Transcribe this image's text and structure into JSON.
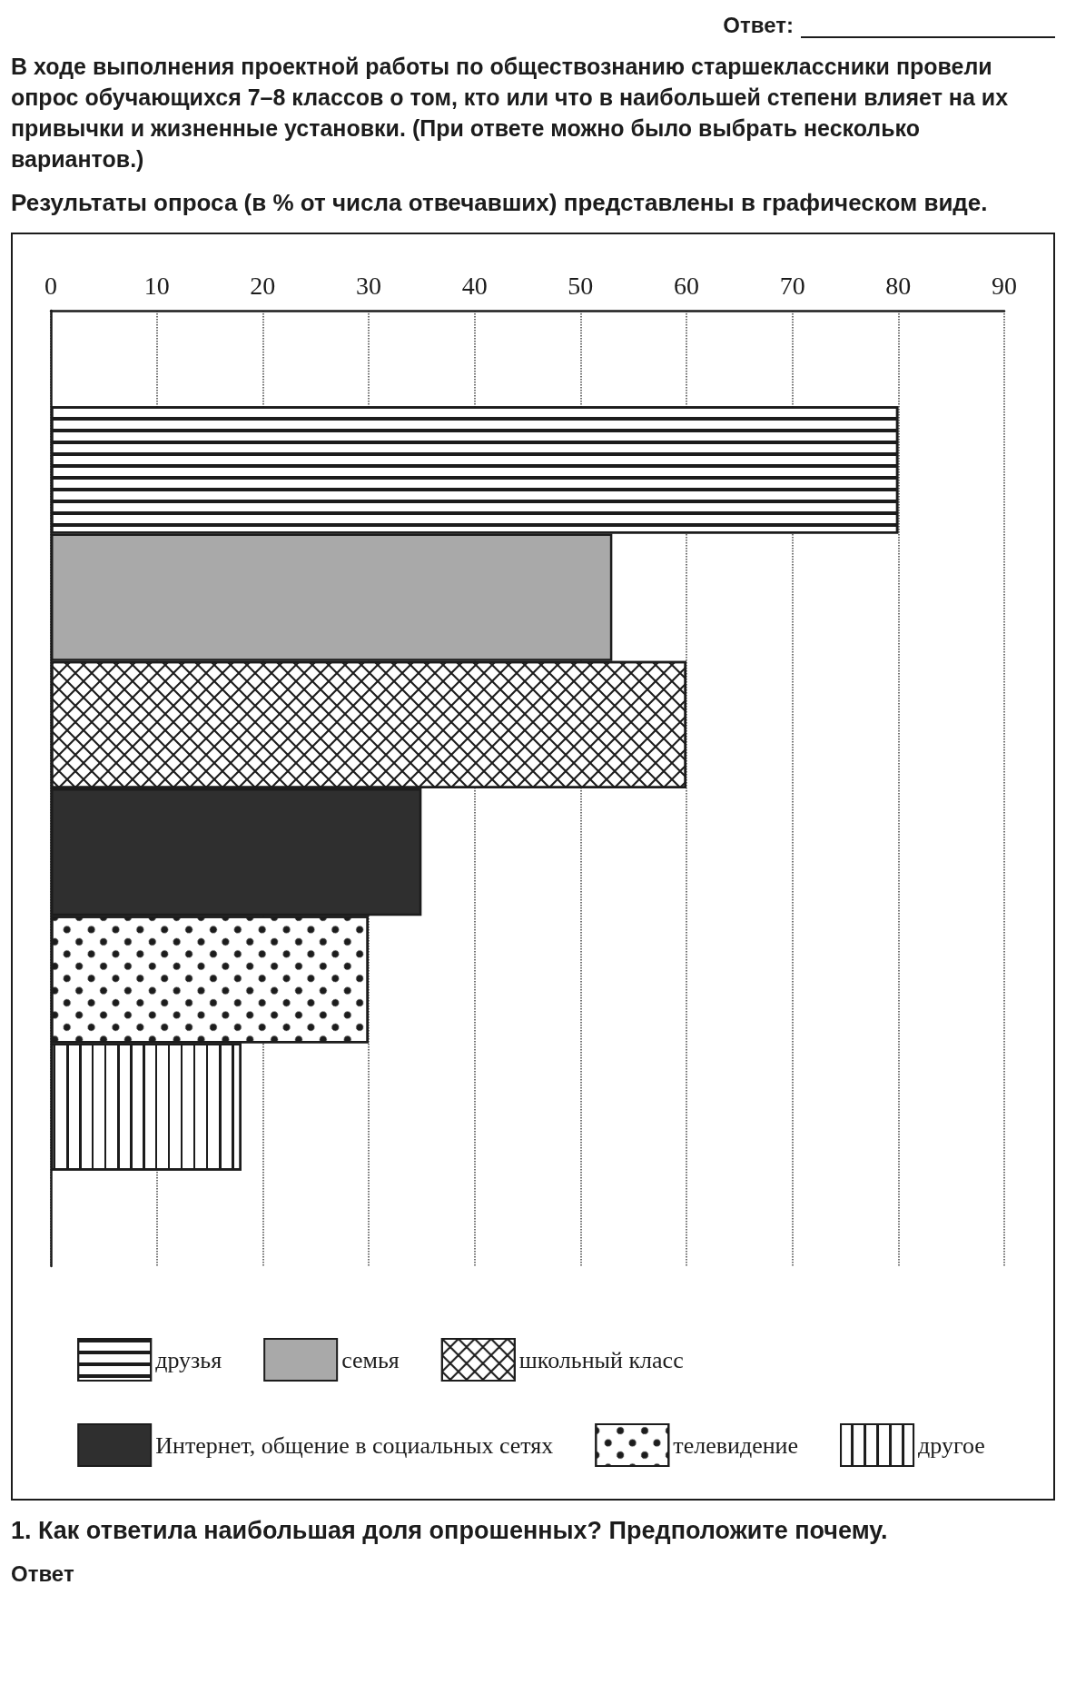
{
  "chart_data": {
    "type": "bar",
    "orientation": "horizontal",
    "title": "В ходе выполнения проектной работы по обществознанию старшеклассники провели опрос обучающихся 7–8 классов о том, кто или что в наибольшей степени влияет на их привычки и жизненные установки. (При ответе можно было выбрать несколько вариантов.)",
    "subtitle": "Результаты опроса (в % от числа отвечавших) представлены в графическом виде.",
    "categories": [
      null
    ],
    "series": [
      {
        "name": "друзья",
        "color": "#ffffff",
        "values": [
          80
        ]
      },
      {
        "name": "семья",
        "color": "#a9a9a9",
        "values": [
          53
        ]
      },
      {
        "name": "школьный класс",
        "color": "#ffffff",
        "values": [
          60
        ]
      },
      {
        "name": "Интернет, общение в социальных сетях",
        "color": "#2f2f2f",
        "values": [
          35
        ]
      },
      {
        "name": "телевидение",
        "color": "#ffffff",
        "values": [
          30
        ]
      },
      {
        "name": "другое",
        "color": "#ffffff",
        "values": [
          18
        ]
      }
    ],
    "xlim": [
      0,
      90
    ],
    "xticks": [
      0,
      10,
      20,
      30,
      40,
      50,
      60,
      70,
      80,
      90
    ],
    "grid": "x",
    "legend": "bottom",
    "annotations": [
      "Ответ:",
      "1. Как ответила наибольшая доля опрошенных? Предположите почему.",
      "Ответ"
    ]
  }
}
